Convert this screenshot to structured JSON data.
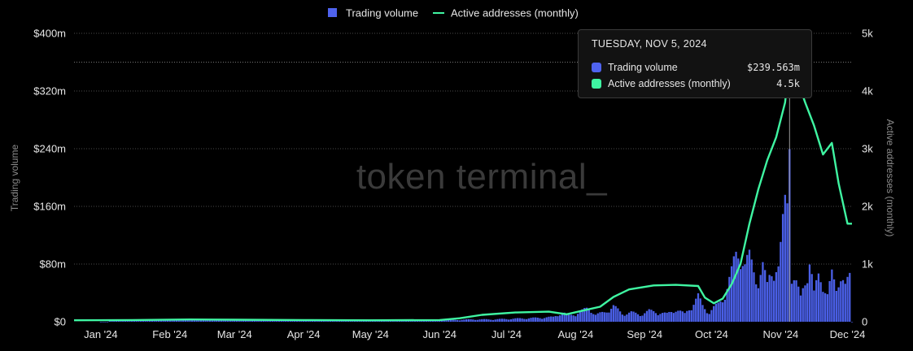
{
  "chart_data": {
    "type": "bar+line",
    "legend": [
      {
        "name": "Trading volume",
        "kind": "bar",
        "color": "#4f63ee"
      },
      {
        "name": "Active addresses (monthly)",
        "kind": "line",
        "color": "#3ff5a2"
      }
    ],
    "ylabel_left": "Trading volume",
    "ylabel_right": "Active addresses (monthly)",
    "y_left_ticks": [
      "$0",
      "$80m",
      "$160m",
      "$240m",
      "$320m",
      "$400m"
    ],
    "y_left_lim": [
      0,
      400
    ],
    "y_right_ticks": [
      "0",
      "1k",
      "2k",
      "3k",
      "4k",
      "5k"
    ],
    "y_right_lim": [
      0,
      5000
    ],
    "x_ticks": [
      "Jan '24",
      "Feb '24",
      "Mar '24",
      "Apr '24",
      "May '24",
      "Jun '24",
      "Jul '24",
      "Aug '24",
      "Sep '24",
      "Oct '24",
      "Nov '24",
      "Dec '24"
    ],
    "x_start": "2023-12-20",
    "x_end": "2024-12-03",
    "watermark": "token terminal_",
    "grid": "horizontal dotted",
    "legend_position": "top-center",
    "volume_series": {
      "name": "Trading volume",
      "unit": "$m",
      "points": [
        [
          "2024-01-05",
          2
        ],
        [
          "2024-01-20",
          2
        ],
        [
          "2024-02-05",
          3
        ],
        [
          "2024-02-20",
          2
        ],
        [
          "2024-03-05",
          2
        ],
        [
          "2024-03-20",
          2
        ],
        [
          "2024-04-05",
          2
        ],
        [
          "2024-04-20",
          2
        ],
        [
          "2024-05-05",
          2
        ],
        [
          "2024-05-20",
          2
        ],
        [
          "2024-06-05",
          2
        ],
        [
          "2024-06-15",
          3
        ],
        [
          "2024-06-25",
          3
        ],
        [
          "2024-07-05",
          4
        ],
        [
          "2024-07-15",
          5
        ],
        [
          "2024-07-22",
          6
        ],
        [
          "2024-07-26",
          12
        ],
        [
          "2024-07-29",
          8
        ],
        [
          "2024-08-01",
          10
        ],
        [
          "2024-08-04",
          14
        ],
        [
          "2024-08-07",
          18
        ],
        [
          "2024-08-10",
          9
        ],
        [
          "2024-08-14",
          12
        ],
        [
          "2024-08-18",
          20
        ],
        [
          "2024-08-22",
          10
        ],
        [
          "2024-08-26",
          12
        ],
        [
          "2024-08-30",
          9
        ],
        [
          "2024-09-03",
          14
        ],
        [
          "2024-09-07",
          12
        ],
        [
          "2024-09-11",
          10
        ],
        [
          "2024-09-15",
          16
        ],
        [
          "2024-09-19",
          10
        ],
        [
          "2024-09-23",
          24
        ],
        [
          "2024-09-25",
          32
        ],
        [
          "2024-09-27",
          20
        ],
        [
          "2024-09-30",
          12
        ],
        [
          "2024-10-02",
          18
        ],
        [
          "2024-10-04",
          22
        ],
        [
          "2024-10-06",
          30
        ],
        [
          "2024-10-08",
          45
        ],
        [
          "2024-10-10",
          62
        ],
        [
          "2024-10-12",
          85
        ],
        [
          "2024-10-14",
          94
        ],
        [
          "2024-10-16",
          72
        ],
        [
          "2024-10-18",
          80
        ],
        [
          "2024-10-20",
          65
        ],
        [
          "2024-10-22",
          55
        ],
        [
          "2024-10-24",
          70
        ],
        [
          "2024-10-26",
          45
        ],
        [
          "2024-10-27",
          58
        ],
        [
          "2024-10-29",
          75
        ],
        [
          "2024-10-31",
          68
        ],
        [
          "2024-11-01",
          90
        ],
        [
          "2024-11-02",
          120
        ],
        [
          "2024-11-03",
          150
        ],
        [
          "2024-11-04",
          160
        ],
        [
          "2024-11-05",
          239.563
        ],
        [
          "2024-11-06",
          60
        ],
        [
          "2024-11-08",
          48
        ],
        [
          "2024-11-10",
          30
        ],
        [
          "2024-11-12",
          55
        ],
        [
          "2024-11-14",
          80
        ],
        [
          "2024-11-16",
          35
        ],
        [
          "2024-11-18",
          58
        ],
        [
          "2024-11-20",
          52
        ],
        [
          "2024-11-22",
          35
        ],
        [
          "2024-11-24",
          58
        ],
        [
          "2024-11-26",
          40
        ],
        [
          "2024-11-28",
          68
        ],
        [
          "2024-11-30",
          45
        ],
        [
          "2024-12-02",
          55
        ]
      ]
    },
    "addresses_series": {
      "name": "Active addresses (monthly)",
      "points": [
        [
          "2023-12-20",
          25
        ],
        [
          "2024-01-15",
          30
        ],
        [
          "2024-02-10",
          40
        ],
        [
          "2024-03-01",
          35
        ],
        [
          "2024-04-01",
          30
        ],
        [
          "2024-05-01",
          25
        ],
        [
          "2024-06-01",
          30
        ],
        [
          "2024-06-10",
          60
        ],
        [
          "2024-06-20",
          120
        ],
        [
          "2024-07-05",
          160
        ],
        [
          "2024-07-20",
          175
        ],
        [
          "2024-07-28",
          130
        ],
        [
          "2024-08-05",
          200
        ],
        [
          "2024-08-12",
          260
        ],
        [
          "2024-08-18",
          430
        ],
        [
          "2024-08-25",
          560
        ],
        [
          "2024-09-05",
          630
        ],
        [
          "2024-09-15",
          640
        ],
        [
          "2024-09-25",
          620
        ],
        [
          "2024-09-28",
          420
        ],
        [
          "2024-10-02",
          320
        ],
        [
          "2024-10-06",
          400
        ],
        [
          "2024-10-10",
          650
        ],
        [
          "2024-10-14",
          1000
        ],
        [
          "2024-10-18",
          1700
        ],
        [
          "2024-10-22",
          2300
        ],
        [
          "2024-10-26",
          2800
        ],
        [
          "2024-10-30",
          3200
        ],
        [
          "2024-11-03",
          3800
        ],
        [
          "2024-11-05",
          4500
        ],
        [
          "2024-11-08",
          4250
        ],
        [
          "2024-11-12",
          3800
        ],
        [
          "2024-11-16",
          3400
        ],
        [
          "2024-11-20",
          2900
        ],
        [
          "2024-11-24",
          3100
        ],
        [
          "2024-11-27",
          2400
        ],
        [
          "2024-12-01",
          1700
        ],
        [
          "2024-12-03",
          1700
        ]
      ]
    },
    "tooltip": {
      "date": "TUESDAY, NOV 5, 2024",
      "rows": [
        {
          "label": "Trading volume",
          "value": "$239.563m",
          "color": "#4f63ee"
        },
        {
          "label": "Active addresses (monthly)",
          "value": "4.5k",
          "color": "#3ff5a2"
        }
      ],
      "hover_date": "2024-11-05"
    }
  }
}
